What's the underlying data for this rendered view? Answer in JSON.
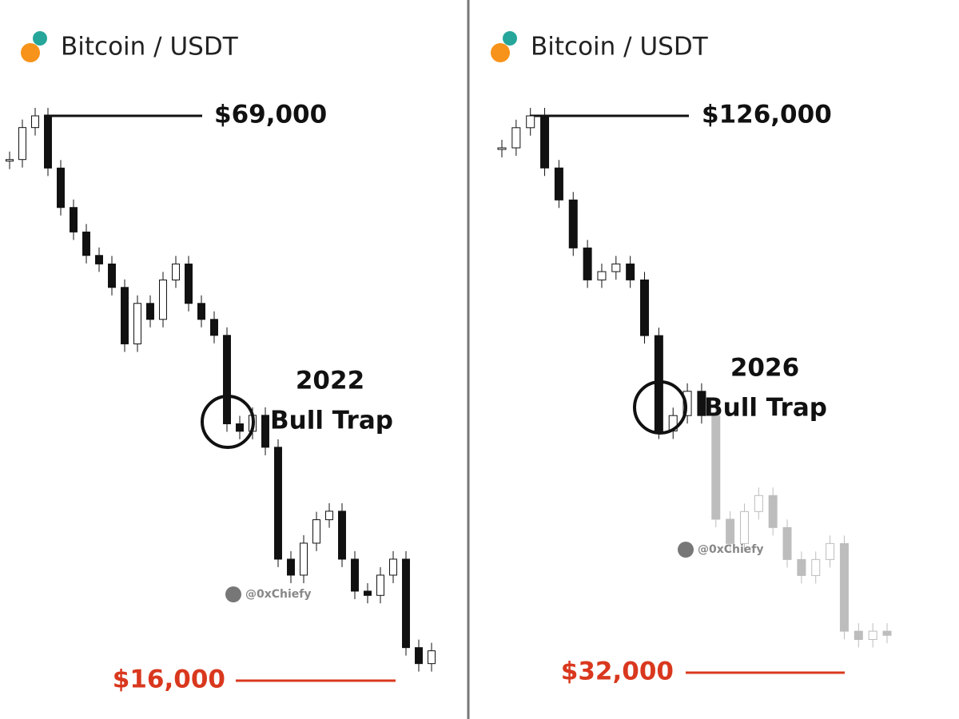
{
  "chart_data": [
    {
      "type": "candlestick",
      "title": "Bitcoin / USDT",
      "ylim": [
        16000,
        69000
      ],
      "high": {
        "value": 69000,
        "label": "$69,000"
      },
      "low": {
        "value": 16000,
        "label": "$16,000"
      },
      "annotation": [
        "2022",
        "Bull Trap"
      ],
      "watermark": "@0xChiefy",
      "series": [
        {
          "color": "#111111",
          "values": [
            64900,
            67900,
            69000,
            64100,
            60400,
            58100,
            55900,
            55100,
            52900,
            47600,
            51400,
            49900,
            53600,
            55100,
            51400,
            49900,
            48400,
            40100,
            39400,
            40900,
            37900,
            27400,
            25900,
            28900,
            31100,
            31900,
            27400,
            24400,
            24000,
            25900,
            27400,
            19100,
            17600,
            18800
          ]
        }
      ]
    },
    {
      "type": "candlestick",
      "title": "Bitcoin / USDT",
      "ylim": [
        32000,
        126000
      ],
      "high": {
        "value": 126000,
        "label": "$126,000"
      },
      "low": {
        "value": 32000,
        "label": "$32,000"
      },
      "annotation": [
        "2026",
        "Bull Trap"
      ],
      "watermark": "@0xChiefy",
      "series": [
        {
          "color": "#111111",
          "values": [
            120600,
            124000,
            126000,
            117200,
            111800,
            103700,
            98300,
            99700,
            101000,
            98300,
            88900,
            72800,
            75400,
            79500,
            75400
          ]
        },
        {
          "color": "#bdbdbd",
          "values": [
            57900,
            53800,
            59200,
            61900,
            56500,
            51100,
            48400,
            51100,
            53800,
            39000,
            37600,
            39000,
            38300
          ]
        }
      ]
    }
  ]
}
